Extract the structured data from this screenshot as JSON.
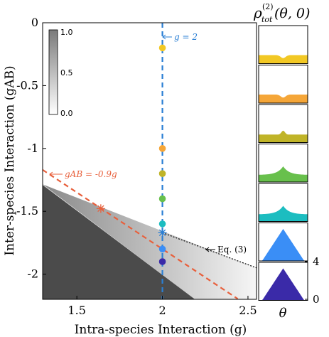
{
  "chart_data": [
    {
      "type": "heatmap",
      "xlabel": "Intra-species Interaction (g)",
      "ylabel": "Inter-species Interaction (gAB)",
      "xlim": [
        1.3,
        2.55
      ],
      "ylim": [
        -2.2,
        0
      ],
      "xticks": [
        1.5,
        2,
        2.5
      ],
      "xtick_labels": [
        "1.5",
        "2",
        "2.5"
      ],
      "yticks": [
        0,
        -0.5,
        -1,
        -1.5,
        -2
      ],
      "ytick_labels": [
        "0",
        "-0.5",
        "-1",
        "-1.5",
        "-2"
      ],
      "colorbar": {
        "min": 0,
        "max": 1,
        "ticks": [
          "0.0",
          "0.5",
          "1.0"
        ]
      },
      "regions": {
        "dark_boundary": {
          "from": [
            1.3,
            -1.29
          ],
          "to": [
            2.19,
            -2.2
          ]
        },
        "gradient_upper_boundary": {
          "from": [
            1.3,
            -1.285
          ],
          "to": [
            2.55,
            -1.95
          ]
        }
      },
      "lines": [
        {
          "label": "g = 2",
          "x": 2,
          "color": "#2a7fd4",
          "style": "dashed"
        },
        {
          "label": "gAB = -0.9g",
          "slope": -0.9,
          "color": "#e8603c",
          "style": "dashed"
        },
        {
          "label": "Eq. (3)",
          "from": [
            2.0,
            -1.67
          ],
          "to": [
            2.55,
            -1.95
          ],
          "color": "#000000",
          "style": "dotted"
        }
      ],
      "annotations": [
        {
          "text": "g = 2",
          "arrow_to": [
            2.0,
            -0.1
          ]
        },
        {
          "text": "gAB = -0.9g",
          "arrow_to": [
            1.34,
            -1.21
          ]
        },
        {
          "text": "Eq. (3)",
          "arrow_to": [
            2.3,
            -1.8
          ]
        }
      ],
      "markers": [
        {
          "type": "star",
          "x": 1.64,
          "y": -1.478,
          "color": "#e8603c"
        },
        {
          "type": "star",
          "x": 2.0,
          "y": -1.67,
          "color": "#2a7fd4"
        }
      ],
      "points": [
        {
          "x": 2,
          "y": -0.2,
          "color": "#f2c824"
        },
        {
          "x": 2,
          "y": -1.0,
          "color": "#f5a638"
        },
        {
          "x": 2,
          "y": -1.2,
          "color": "#c0b428"
        },
        {
          "x": 2,
          "y": -1.4,
          "color": "#68c04c"
        },
        {
          "x": 2,
          "y": -1.6,
          "color": "#1cbdc0"
        },
        {
          "x": 2,
          "y": -1.8,
          "color": "#3a8ef6"
        },
        {
          "x": 2,
          "y": -1.9,
          "color": "#3a2aa8"
        }
      ]
    },
    {
      "type": "area",
      "title": "ρ(2)tot(θ,0)",
      "title_parts": {
        "main": "ρ",
        "sup": "(2)",
        "sub": "tot",
        "args": "(θ, 0)"
      },
      "xlabel": "θ",
      "yticks": [
        "4",
        "0"
      ],
      "panels": [
        {
          "color": "#f2c824",
          "shape": "dip"
        },
        {
          "color": "#f5a638",
          "shape": "dip"
        },
        {
          "color": "#c0b428",
          "shape": "small-peak"
        },
        {
          "color": "#68c04c",
          "shape": "peak"
        },
        {
          "color": "#1cbdc0",
          "shape": "peak"
        },
        {
          "color": "#3a8ef6",
          "shape": "tall-peak"
        },
        {
          "color": "#3a2aa8",
          "shape": "tall-peak"
        }
      ]
    }
  ]
}
